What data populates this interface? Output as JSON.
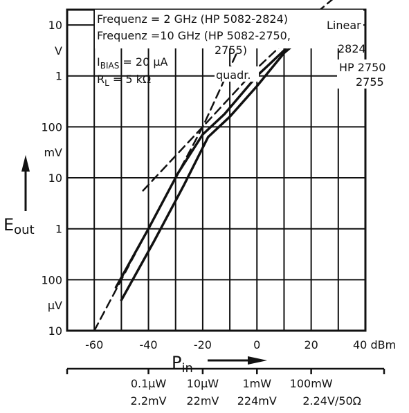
{
  "chart_data": {
    "type": "line",
    "xlabel": "P",
    "xlabel_sub": "in",
    "ylabel": "E",
    "ylabel_sub": "out",
    "xlim": [
      -70,
      40
    ],
    "ylim_exponent": [
      -5,
      1.3
    ],
    "x_ticks": [
      {
        "value": -60,
        "label": "-60"
      },
      {
        "value": -40,
        "label": "-40"
      },
      {
        "value": -20,
        "label": "-20"
      },
      {
        "value": 0,
        "label": "0"
      },
      {
        "value": 20,
        "label": "20"
      },
      {
        "value": 40,
        "label": "40 dBm"
      }
    ],
    "y_ticks": [
      {
        "exp": 1,
        "label": "10"
      },
      {
        "exp": 0,
        "label": "1"
      },
      {
        "exp": -1,
        "label": "100"
      },
      {
        "exp": -2,
        "label": "10"
      },
      {
        "exp": -3,
        "label": "1"
      },
      {
        "exp": -4,
        "label": "100"
      },
      {
        "exp": -5,
        "label": "10"
      }
    ],
    "y_units": [
      {
        "exp": 0.5,
        "label": "V"
      },
      {
        "exp": -1.5,
        "label": "mV"
      },
      {
        "exp": -4.5,
        "label": "μV"
      }
    ],
    "secondary_x": [
      {
        "value": -40,
        "power": "0.1μW",
        "voltage": "2.2mV"
      },
      {
        "value": -20,
        "power": "10μW",
        "voltage": "22mV"
      },
      {
        "value": 0,
        "power": "1mW",
        "voltage": "224mV"
      },
      {
        "value": 20,
        "power": "100mW",
        "voltage": "2.24V/50Ω"
      }
    ],
    "legend": {
      "line1": "Frequenz = 2 GHz (HP 5082-2824)",
      "line2": "Frequenz =10 GHz (HP 5082-2750,",
      "line3": "2755)",
      "bias_main": "I",
      "bias_sub": "BIAS",
      "bias_value": " = 20 μA",
      "rl_main": "R",
      "rl_sub": "L",
      "rl_value": "   =  5 kΩ"
    },
    "annotations": {
      "linear": "Linear",
      "hp2824": "2824",
      "hp2750": "HP 2750",
      "hp2755": "2755",
      "quadr": "quadr."
    },
    "series": [
      {
        "name": "2824",
        "style": "solid",
        "points": [
          [
            -52,
            -4.15
          ],
          [
            -40,
            -3.0
          ],
          [
            -29,
            -1.9
          ],
          [
            -20,
            -1.15
          ],
          [
            -12,
            -0.75
          ],
          [
            0,
            0.0
          ],
          [
            10,
            0.5
          ],
          [
            20,
            1.15
          ],
          [
            22,
            1.2
          ]
        ]
      },
      {
        "name": "HP 2750 2755",
        "style": "solid",
        "points": [
          [
            -50,
            -4.4
          ],
          [
            -38,
            -3.25
          ],
          [
            -27,
            -2.15
          ],
          [
            -18,
            -1.2
          ],
          [
            -10,
            -0.8
          ],
          [
            0,
            -0.2
          ],
          [
            10,
            0.45
          ],
          [
            20,
            0.9
          ],
          [
            26,
            0.85
          ]
        ]
      },
      {
        "name": "Linear",
        "style": "dashed",
        "points": [
          [
            -42,
            -2.25
          ],
          [
            -20,
            -1.0
          ],
          [
            0,
            0.15
          ],
          [
            20,
            1.15
          ],
          [
            30,
            1.6
          ]
        ]
      },
      {
        "name": "quadr.",
        "style": "dashed",
        "points": [
          [
            -60,
            -5.0
          ],
          [
            -40,
            -3.0
          ],
          [
            -20,
            -1.0
          ],
          [
            -7,
            0.5
          ]
        ]
      }
    ]
  }
}
